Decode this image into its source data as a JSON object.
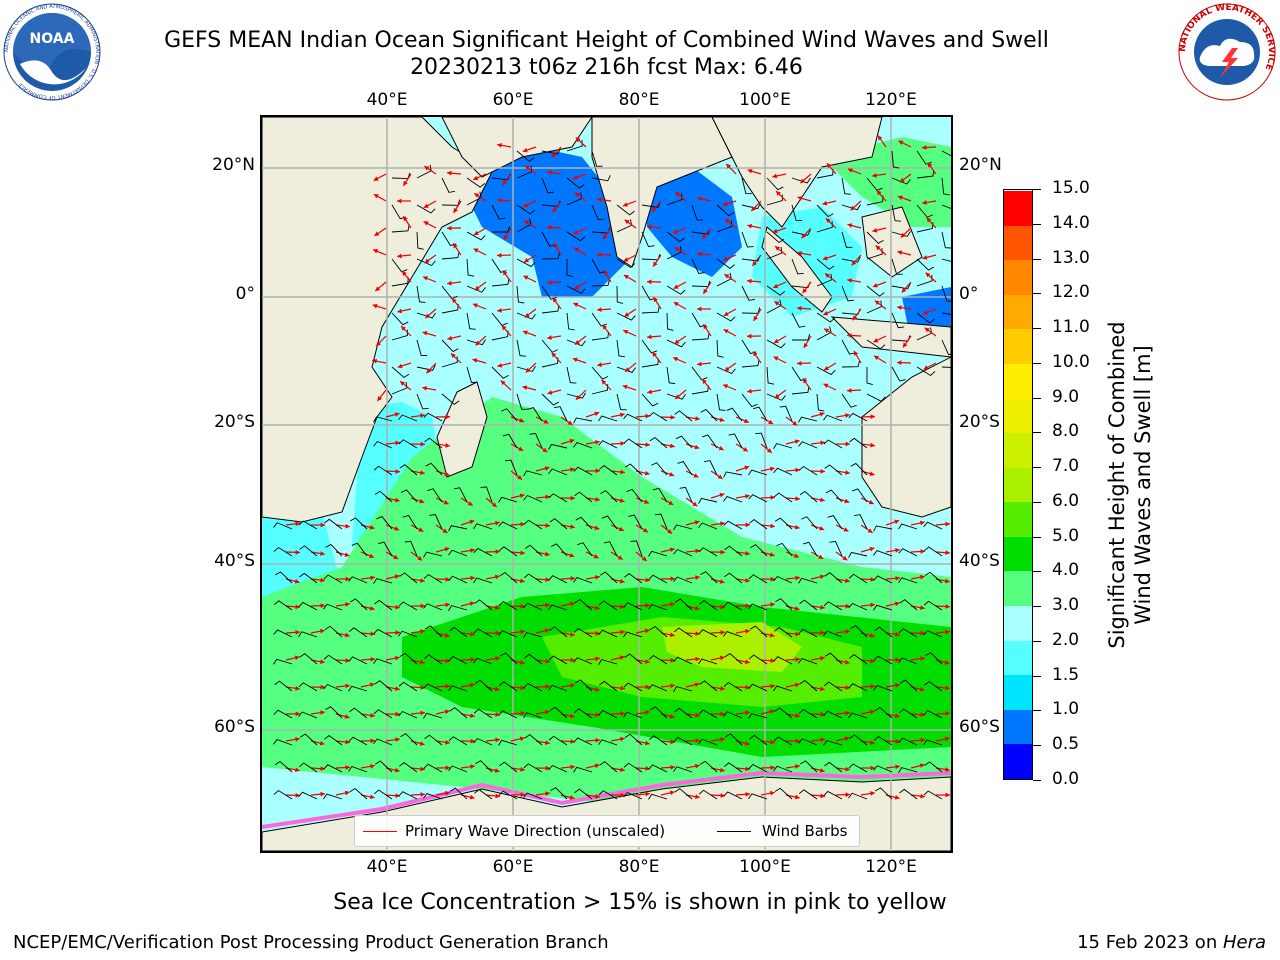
{
  "header": {
    "title_line1": "GEFS MEAN Indian Ocean Significant Height of Combined Wind Waves and Swell",
    "title_line2": "20230213 t06z 216h fcst   Max: 6.46"
  },
  "logos": {
    "noaa_text": "NOAA",
    "nws_text": "NATIONAL WEATHER SERVICE",
    "noaa_ring_text": "NATIONAL OCEANIC AND ATMOSPHERIC ADMINISTRATION · U.S. DEPARTMENT OF COMMERCE"
  },
  "map": {
    "top_lon_labels": [
      "40°E",
      "60°E",
      "80°E",
      "100°E",
      "120°E"
    ],
    "bottom_lon_labels": [
      "40°E",
      "60°E",
      "80°E",
      "100°E",
      "120°E"
    ],
    "left_lat_labels": [
      "20°N",
      "0°",
      "20°S",
      "40°S",
      "60°S"
    ],
    "right_lat_labels": [
      "20°N",
      "0°",
      "20°S",
      "40°S",
      "60°S"
    ],
    "legend": {
      "wave_dir": "Primary Wave Direction (unscaled)",
      "wind_barbs": "Wind Barbs",
      "wave_color": "#ff0000",
      "barb_color": "#000000"
    },
    "land_color": "#efeedd",
    "grid_color": "#b0b0b0"
  },
  "colorbar": {
    "title_line1": "Significant Height of Combined",
    "title_line2": "Wind Waves and Swell [m]",
    "levels": [
      "0.0",
      "0.5",
      "1.0",
      "1.5",
      "2.0",
      "3.0",
      "4.0",
      "5.0",
      "6.0",
      "7.0",
      "8.0",
      "9.0",
      "10.0",
      "11.0",
      "12.0",
      "13.0",
      "14.0",
      "15.0"
    ],
    "colors": [
      "#0000ff",
      "#0077ff",
      "#00e5ff",
      "#55ffff",
      "#aaffff",
      "#55ff7f",
      "#00dd00",
      "#55ee00",
      "#aaf000",
      "#cdf000",
      "#eeee00",
      "#ffee00",
      "#ffcc00",
      "#ffaa00",
      "#ff8800",
      "#ff5500",
      "#ff0000"
    ]
  },
  "footer": {
    "sea_ice_note": "Sea Ice Concentration > 15% is shown in pink to yellow",
    "credit_left": "NCEP/EMC/Verification Post Processing Product Generation Branch",
    "credit_date": "15 Feb 2023 on ",
    "credit_host": "Hera"
  }
}
